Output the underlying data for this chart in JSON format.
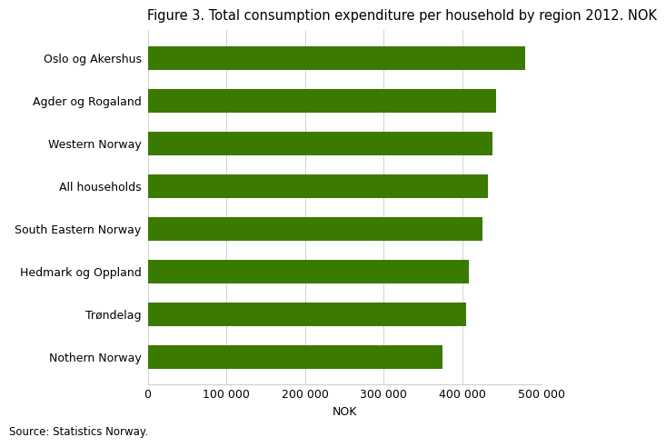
{
  "title": "Figure 3. Total consumption expenditure per household by region 2012. NOK",
  "categories": [
    "Oslo og Akershus",
    "Agder og Rogaland",
    "Western Norway",
    "All households",
    "South Eastern Norway",
    "Hedmark og Oppland",
    "Trøndelag",
    "Nothern Norway"
  ],
  "values": [
    480000,
    443000,
    438000,
    432000,
    425000,
    408000,
    405000,
    375000
  ],
  "bar_color": "#3a7a00",
  "xlabel": "NOK",
  "xlim": [
    0,
    500000
  ],
  "xticks": [
    0,
    100000,
    200000,
    300000,
    400000,
    500000
  ],
  "xtick_labels": [
    "0",
    "100 000",
    "200 000",
    "300 000",
    "400 000",
    "500 000"
  ],
  "source_text": "Source: Statistics Norway.",
  "background_color": "#ffffff",
  "title_fontsize": 10.5,
  "axis_fontsize": 9,
  "ytick_fontsize": 9,
  "source_fontsize": 8.5,
  "bar_height": 0.55,
  "grid_color": "#d0d0d0",
  "spine_color": "#d0d0d0"
}
